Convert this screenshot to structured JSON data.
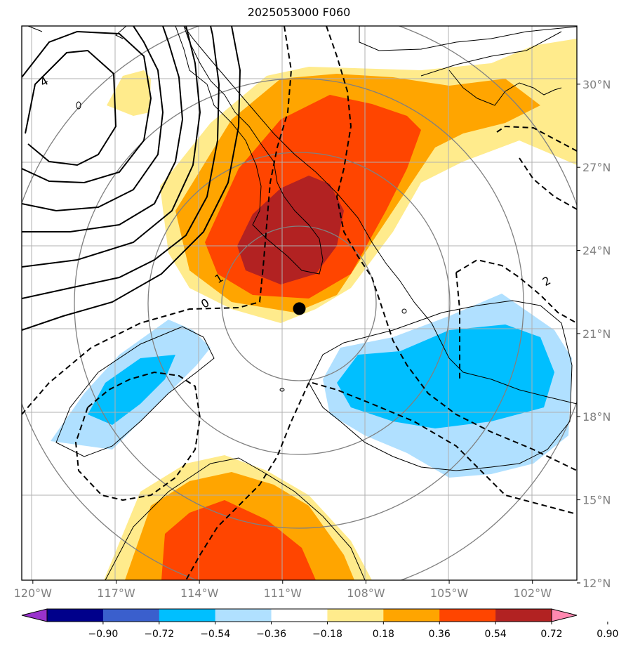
{
  "chart_data": {
    "type": "map-contour",
    "title": "2025053000 F060",
    "x_ticks": [
      "120°W",
      "117°W",
      "114°W",
      "111°W",
      "108°W",
      "105°W",
      "102°W"
    ],
    "x_tick_values": [
      -120,
      -117,
      -114,
      -111,
      -108,
      -105,
      -102
    ],
    "y_ticks": [
      "30°N",
      "27°N",
      "24°N",
      "21°N",
      "18°N",
      "15°N",
      "12°N"
    ],
    "y_tick_values": [
      30,
      27,
      24,
      21,
      18,
      15,
      12
    ],
    "lon_range": [
      -120.4,
      -100.4
    ],
    "lat_range": [
      12.1,
      32.1
    ],
    "grid": true,
    "colorbar": {
      "ticks": [
        "−0.90",
        "−0.72",
        "−0.54",
        "−0.36",
        "−0.18",
        "0.18",
        "0.36",
        "0.54",
        "0.72",
        "0.90"
      ],
      "levels": [
        -0.9,
        -0.72,
        -0.54,
        -0.36,
        -0.18,
        0.18,
        0.36,
        0.54,
        0.72,
        0.9
      ],
      "colors": [
        "#9932cc",
        "#00008b",
        "#3a5fcd",
        "#00bfff",
        "#b0e0ff",
        "#ffffff",
        "#ffeb8c",
        "#ffa500",
        "#ff4500",
        "#b22222",
        "#ff88b0"
      ],
      "extend": "both"
    },
    "contour_labels": [
      {
        "text": "4",
        "lon": -119.6,
        "lat": 30.1
      },
      {
        "text": "1",
        "lon": -113.3,
        "lat": 23.0
      },
      {
        "text": "0",
        "lon": -113.8,
        "lat": 22.1
      },
      {
        "text": "2",
        "lon": -101.5,
        "lat": 22.9
      }
    ],
    "center_marker": {
      "lon": -110.4,
      "lat": 21.9,
      "color": "#000000"
    }
  }
}
